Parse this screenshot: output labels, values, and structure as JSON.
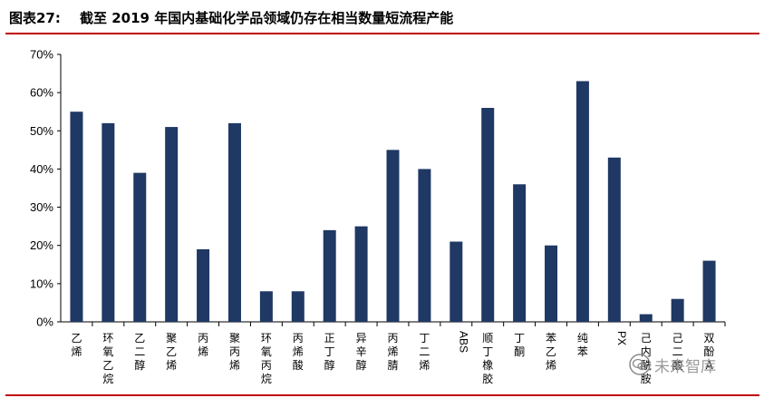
{
  "figure": {
    "label": "图表27:",
    "title": "截至 2019 年国内基础化学品领域仍存在相当数量短流程产能",
    "rule_color": "#c00000"
  },
  "watermark": {
    "text": "未来智库",
    "icon": "wechat-watermark-icon"
  },
  "chart_data": {
    "type": "bar",
    "title": "",
    "xlabel": "",
    "ylabel": "",
    "ylim": [
      0,
      0.7
    ],
    "yticks": [
      "0%",
      "10%",
      "20%",
      "30%",
      "40%",
      "50%",
      "60%",
      "70%"
    ],
    "categories": [
      "乙烯",
      "环氧乙烷",
      "乙二醇",
      "聚乙烯",
      "丙烯",
      "聚丙烯",
      "环氧丙烷",
      "丙烯酸",
      "正丁醇",
      "异辛醇",
      "丙烯腈",
      "丁二烯",
      "ABS",
      "顺丁橡胶",
      "丁酮",
      "苯乙烯",
      "纯苯",
      "PX",
      "己内酰胺",
      "己二酸",
      "双酚A"
    ],
    "values": [
      0.55,
      0.52,
      0.39,
      0.51,
      0.19,
      0.52,
      0.08,
      0.08,
      0.24,
      0.25,
      0.45,
      0.4,
      0.21,
      0.56,
      0.36,
      0.2,
      0.63,
      0.43,
      0.02,
      0.06,
      0.16
    ],
    "grid": false,
    "legend": "none",
    "bar_color": "#1f3864"
  }
}
